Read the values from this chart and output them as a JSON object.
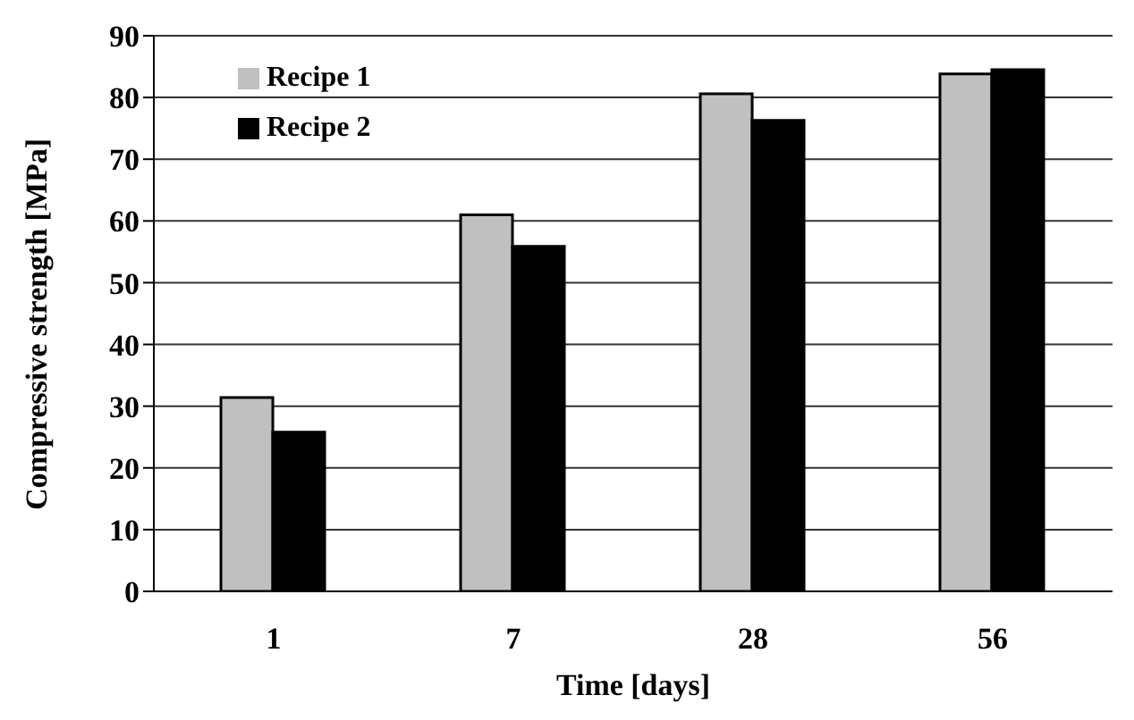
{
  "chart_data": {
    "type": "bar",
    "xlabel": "Time [days]",
    "ylabel": "Compressive strength [MPa]",
    "categories": [
      "1",
      "7",
      "28",
      "56"
    ],
    "series": [
      {
        "name": "Recipe 1",
        "color": "#c0c0c0",
        "values": [
          31.4,
          61,
          80.6,
          83.8
        ]
      },
      {
        "name": "Recipe 2",
        "color": "#000000",
        "values": [
          25.8,
          55.9,
          76.3,
          84.5
        ]
      }
    ],
    "ylim": [
      0,
      90
    ],
    "yticks": [
      0,
      10,
      20,
      30,
      40,
      50,
      60,
      70,
      80,
      90
    ],
    "grid": "y",
    "legend": "top left"
  }
}
